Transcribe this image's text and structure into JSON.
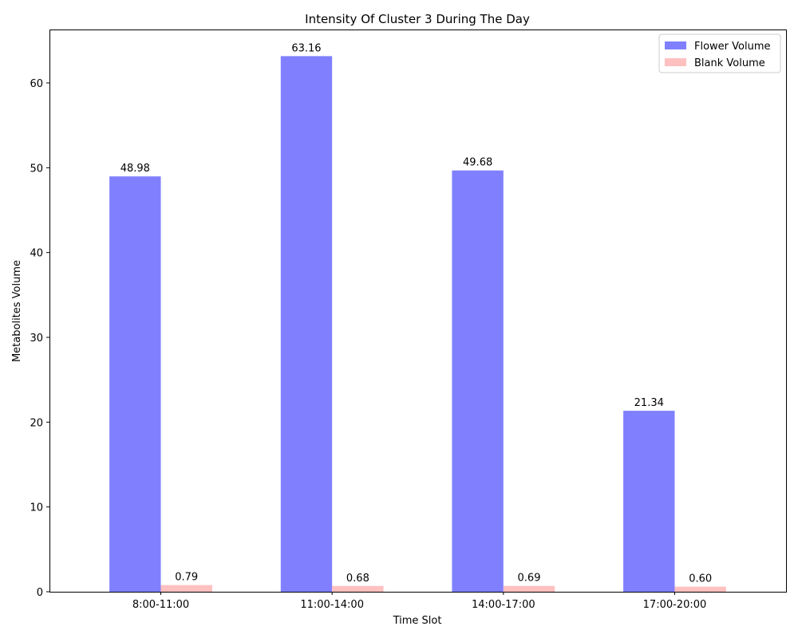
{
  "chart_data": {
    "type": "bar",
    "title": "Intensity Of Cluster 3 During The Day",
    "xlabel": "Time Slot",
    "ylabel": "Metabolites Volume",
    "categories": [
      "8:00-11:00",
      "11:00-14:00",
      "14:00-17:00",
      "17:00-20:00"
    ],
    "series": [
      {
        "name": "Flower Volume",
        "values": [
          48.98,
          63.16,
          49.68,
          21.34
        ],
        "labels": [
          "48.98",
          "63.16",
          "49.68",
          "21.34"
        ],
        "color": "#8080ff"
      },
      {
        "name": "Blank Volume",
        "values": [
          0.79,
          0.68,
          0.69,
          0.6
        ],
        "labels": [
          "0.79",
          "0.68",
          "0.69",
          "0.60"
        ],
        "color": "#ffc0c0"
      }
    ],
    "ylim": [
      0,
      66.3
    ],
    "yticks": [
      0,
      10,
      20,
      30,
      40,
      50,
      60
    ],
    "ytick_labels": [
      "0",
      "10",
      "20",
      "30",
      "40",
      "50",
      "60"
    ],
    "grid": false,
    "legend_position": "top-right"
  }
}
